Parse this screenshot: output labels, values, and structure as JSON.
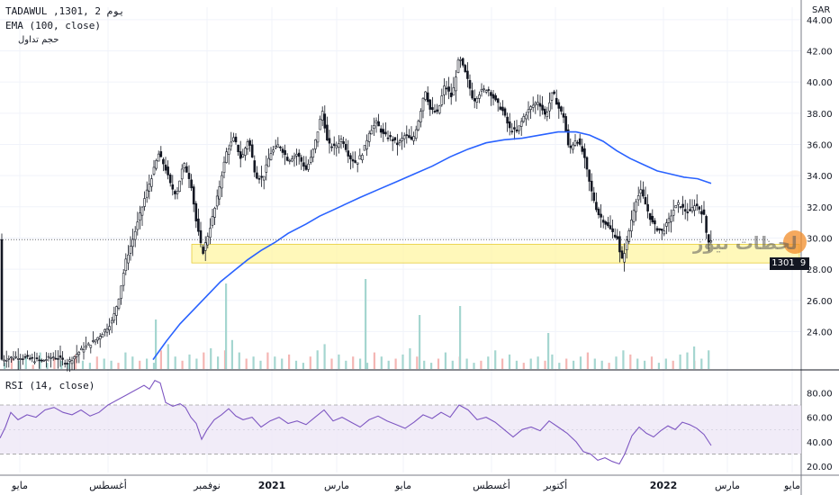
{
  "legend": {
    "symbol_line": "TADAWUL ,يوم 2 ,1301",
    "ema_line": "EMA (100, close)",
    "volume_line": "حجم تداول",
    "rsi_line": "RSI (14, close)"
  },
  "currency": "SAR",
  "last_price_tag": "1301",
  "last_price_tag_suffix": "9",
  "watermark_text": "لحظات نيوز",
  "colors": {
    "up": "#26a69a",
    "down": "#ef5350",
    "candle": "#131722",
    "ema": "#2962ff",
    "rsi": "#7e57c2",
    "support_zone": "#fff59d"
  },
  "chart_data": [
    {
      "type": "candlestick",
      "y_axis_ticks": [
        "44.00",
        "42.00",
        "40.00",
        "38.00",
        "36.00",
        "34.00",
        "32.00",
        "30.00",
        "28.00",
        "26.00",
        "24.00"
      ],
      "ylim": [
        21.6,
        44.8
      ],
      "x_axis_labels": [
        "مايو",
        "أغسطس",
        "نوفمبر",
        "2021",
        "مارس",
        "مايو",
        "أغسطس",
        "أكتوبر",
        "2022",
        "مارس",
        "مايو"
      ],
      "price_path": [
        [
          0,
          22.2
        ],
        [
          20,
          22.4
        ],
        [
          45,
          22.1
        ],
        [
          60,
          22.4
        ],
        [
          75,
          22.0
        ],
        [
          90,
          22.8
        ],
        [
          105,
          23.4
        ],
        [
          115,
          24.0
        ],
        [
          125,
          24.7
        ],
        [
          132,
          26.2
        ],
        [
          140,
          28.6
        ],
        [
          148,
          30.0
        ],
        [
          155,
          31.4
        ],
        [
          162,
          32.8
        ],
        [
          170,
          34.2
        ],
        [
          176,
          35.4
        ],
        [
          183,
          34.6
        ],
        [
          190,
          33.3
        ],
        [
          196,
          32.8
        ],
        [
          204,
          34.8
        ],
        [
          212,
          33.6
        ],
        [
          218,
          31.0
        ],
        [
          225,
          29.0
        ],
        [
          232,
          30.4
        ],
        [
          240,
          32.2
        ],
        [
          246,
          34.0
        ],
        [
          252,
          35.6
        ],
        [
          260,
          36.4
        ],
        [
          268,
          35.0
        ],
        [
          276,
          36.4
        ],
        [
          284,
          34.0
        ],
        [
          292,
          33.8
        ],
        [
          300,
          35.4
        ],
        [
          310,
          36.0
        ],
        [
          320,
          35.0
        ],
        [
          330,
          35.4
        ],
        [
          340,
          34.4
        ],
        [
          346,
          35.2
        ],
        [
          352,
          36.6
        ],
        [
          358,
          38.2
        ],
        [
          364,
          36.0
        ],
        [
          372,
          35.8
        ],
        [
          380,
          36.4
        ],
        [
          388,
          35.2
        ],
        [
          396,
          34.8
        ],
        [
          404,
          35.6
        ],
        [
          410,
          36.8
        ],
        [
          418,
          37.4
        ],
        [
          426,
          36.6
        ],
        [
          434,
          36.4
        ],
        [
          442,
          36.0
        ],
        [
          450,
          36.6
        ],
        [
          458,
          36.2
        ],
        [
          466,
          37.8
        ],
        [
          472,
          39.6
        ],
        [
          478,
          38.2
        ],
        [
          486,
          38.0
        ],
        [
          494,
          39.8
        ],
        [
          502,
          39.0
        ],
        [
          510,
          41.6
        ],
        [
          518,
          40.4
        ],
        [
          526,
          38.8
        ],
        [
          534,
          39.4
        ],
        [
          542,
          39.6
        ],
        [
          550,
          38.8
        ],
        [
          558,
          38.2
        ],
        [
          566,
          37.0
        ],
        [
          574,
          36.8
        ],
        [
          582,
          37.8
        ],
        [
          590,
          38.4
        ],
        [
          598,
          38.8
        ],
        [
          606,
          37.8
        ],
        [
          614,
          39.4
        ],
        [
          620,
          38.4
        ],
        [
          626,
          37.8
        ],
        [
          632,
          35.6
        ],
        [
          640,
          36.4
        ],
        [
          648,
          35.4
        ],
        [
          656,
          33.2
        ],
        [
          664,
          31.6
        ],
        [
          672,
          31.0
        ],
        [
          680,
          30.4
        ],
        [
          686,
          30.0
        ],
        [
          690,
          28.4
        ],
        [
          694,
          29.2
        ],
        [
          700,
          30.8
        ],
        [
          706,
          32.4
        ],
        [
          712,
          33.0
        ],
        [
          718,
          32.0
        ],
        [
          724,
          31.0
        ],
        [
          730,
          30.6
        ],
        [
          736,
          30.4
        ],
        [
          742,
          31.0
        ],
        [
          748,
          31.8
        ],
        [
          754,
          32.2
        ],
        [
          760,
          31.8
        ],
        [
          766,
          31.6
        ],
        [
          772,
          32.2
        ],
        [
          778,
          31.8
        ],
        [
          782,
          31.4
        ],
        [
          786,
          29.8
        ],
        [
          790,
          29.9
        ]
      ],
      "ema_path": [
        [
          170,
          22.2
        ],
        [
          185,
          23.4
        ],
        [
          200,
          24.5
        ],
        [
          215,
          25.4
        ],
        [
          230,
          26.3
        ],
        [
          245,
          27.2
        ],
        [
          260,
          27.9
        ],
        [
          275,
          28.6
        ],
        [
          290,
          29.2
        ],
        [
          305,
          29.7
        ],
        [
          320,
          30.3
        ],
        [
          340,
          30.9
        ],
        [
          355,
          31.4
        ],
        [
          370,
          31.8
        ],
        [
          385,
          32.2
        ],
        [
          400,
          32.6
        ],
        [
          420,
          33.1
        ],
        [
          440,
          33.6
        ],
        [
          460,
          34.1
        ],
        [
          480,
          34.6
        ],
        [
          500,
          35.2
        ],
        [
          520,
          35.7
        ],
        [
          540,
          36.1
        ],
        [
          560,
          36.3
        ],
        [
          580,
          36.4
        ],
        [
          600,
          36.6
        ],
        [
          620,
          36.8
        ],
        [
          640,
          36.8
        ],
        [
          655,
          36.6
        ],
        [
          670,
          36.2
        ],
        [
          685,
          35.6
        ],
        [
          700,
          35.1
        ],
        [
          715,
          34.7
        ],
        [
          730,
          34.3
        ],
        [
          745,
          34.1
        ],
        [
          760,
          33.9
        ],
        [
          775,
          33.8
        ],
        [
          790,
          33.5
        ]
      ],
      "support_zone": [
        28.4,
        29.6
      ],
      "last_price_line": 29.9
    },
    {
      "type": "line",
      "name": "RSI (14, close)",
      "y_axis_ticks": [
        "80.00",
        "60.00",
        "40.00",
        "20.00"
      ],
      "ylim": [
        15,
        92
      ],
      "upper_band": 70,
      "lower_band": 30,
      "rsi_path": [
        [
          0,
          43
        ],
        [
          6,
          52
        ],
        [
          12,
          64
        ],
        [
          20,
          58
        ],
        [
          30,
          62
        ],
        [
          40,
          60
        ],
        [
          50,
          66
        ],
        [
          60,
          68
        ],
        [
          70,
          64
        ],
        [
          80,
          62
        ],
        [
          90,
          66
        ],
        [
          100,
          61
        ],
        [
          110,
          64
        ],
        [
          120,
          70
        ],
        [
          130,
          74
        ],
        [
          140,
          78
        ],
        [
          150,
          82
        ],
        [
          160,
          86
        ],
        [
          166,
          83
        ],
        [
          172,
          90
        ],
        [
          178,
          88
        ],
        [
          184,
          72
        ],
        [
          192,
          69
        ],
        [
          200,
          71
        ],
        [
          206,
          68
        ],
        [
          212,
          60
        ],
        [
          218,
          55
        ],
        [
          224,
          42
        ],
        [
          230,
          50
        ],
        [
          238,
          58
        ],
        [
          246,
          62
        ],
        [
          254,
          67
        ],
        [
          262,
          61
        ],
        [
          270,
          58
        ],
        [
          280,
          60
        ],
        [
          290,
          52
        ],
        [
          300,
          57
        ],
        [
          310,
          60
        ],
        [
          320,
          55
        ],
        [
          330,
          57
        ],
        [
          340,
          54
        ],
        [
          350,
          60
        ],
        [
          360,
          66
        ],
        [
          370,
          57
        ],
        [
          380,
          60
        ],
        [
          390,
          56
        ],
        [
          400,
          52
        ],
        [
          410,
          58
        ],
        [
          420,
          61
        ],
        [
          430,
          57
        ],
        [
          440,
          54
        ],
        [
          450,
          51
        ],
        [
          460,
          56
        ],
        [
          470,
          62
        ],
        [
          480,
          59
        ],
        [
          490,
          64
        ],
        [
          500,
          60
        ],
        [
          510,
          70
        ],
        [
          520,
          66
        ],
        [
          530,
          58
        ],
        [
          540,
          60
        ],
        [
          550,
          56
        ],
        [
          560,
          50
        ],
        [
          570,
          44
        ],
        [
          580,
          50
        ],
        [
          590,
          52
        ],
        [
          600,
          49
        ],
        [
          610,
          57
        ],
        [
          620,
          52
        ],
        [
          630,
          47
        ],
        [
          640,
          40
        ],
        [
          648,
          32
        ],
        [
          656,
          30
        ],
        [
          664,
          25
        ],
        [
          672,
          27
        ],
        [
          680,
          24
        ],
        [
          688,
          22
        ],
        [
          694,
          30
        ],
        [
          702,
          45
        ],
        [
          710,
          52
        ],
        [
          718,
          47
        ],
        [
          726,
          44
        ],
        [
          734,
          49
        ],
        [
          742,
          53
        ],
        [
          750,
          50
        ],
        [
          758,
          56
        ],
        [
          766,
          54
        ],
        [
          774,
          51
        ],
        [
          782,
          46
        ],
        [
          790,
          37
        ]
      ],
      "volume_bars": [
        3,
        5,
        4,
        6,
        2,
        8,
        3,
        5,
        4,
        3,
        7,
        4,
        3,
        6,
        5,
        4,
        3,
        8,
        6,
        4,
        5,
        3,
        9,
        12,
        6,
        4,
        7,
        5,
        8,
        10,
        6,
        9,
        14,
        8,
        5,
        6,
        4,
        8,
        6,
        5,
        7,
        4,
        3,
        6,
        9,
        12,
        5,
        7,
        4,
        6,
        5,
        3,
        8,
        6,
        4,
        5,
        7,
        10,
        6,
        4,
        3,
        5,
        8,
        4,
        6,
        5,
        3,
        4,
        6,
        9,
        5,
        7,
        4,
        3,
        5,
        6,
        4,
        7,
        3,
        5,
        4,
        6,
        8,
        5,
        4,
        3,
        6,
        9,
        7,
        5,
        4,
        6,
        3,
        5,
        4,
        7,
        8,
        4,
        5,
        9
      ]
    }
  ]
}
